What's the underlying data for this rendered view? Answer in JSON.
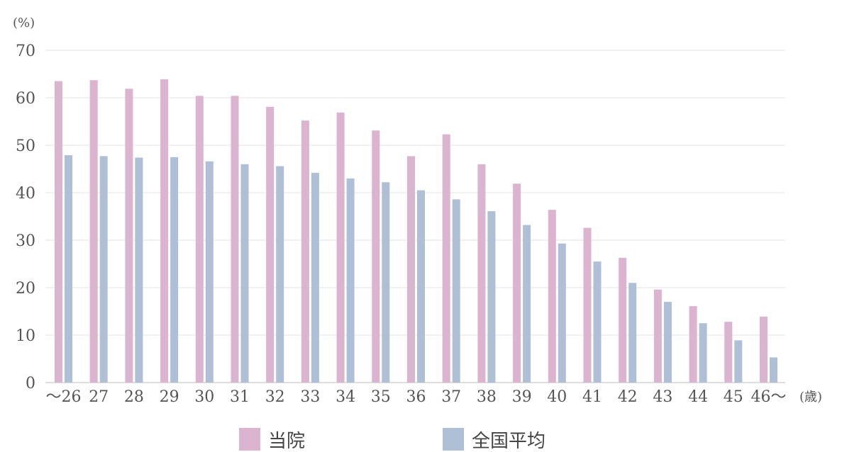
{
  "chart_data": {
    "type": "bar",
    "y_unit": "(%)",
    "x_unit": "(歳)",
    "categories": [
      "〜26",
      "27",
      "28",
      "29",
      "30",
      "31",
      "32",
      "33",
      "34",
      "35",
      "36",
      "37",
      "38",
      "39",
      "40",
      "41",
      "42",
      "43",
      "44",
      "45",
      "46〜"
    ],
    "series": [
      {
        "name": "当院",
        "color": "#dbb5cf",
        "values": [
          63.5,
          63.7,
          61.9,
          63.9,
          60.4,
          60.4,
          58.1,
          55.2,
          56.9,
          53.1,
          47.7,
          52.3,
          46.0,
          41.9,
          36.4,
          32.6,
          26.3,
          19.6,
          16.1,
          12.8,
          13.9
        ]
      },
      {
        "name": "全国平均",
        "color": "#aebfd6",
        "values": [
          47.9,
          47.7,
          47.4,
          47.5,
          46.6,
          46.0,
          45.6,
          44.2,
          43.0,
          42.2,
          40.5,
          38.6,
          36.1,
          33.2,
          29.3,
          25.5,
          21.0,
          17.0,
          12.5,
          8.9,
          5.3
        ]
      }
    ],
    "ylim": [
      0,
      70
    ],
    "yticks": [
      0,
      10,
      20,
      30,
      40,
      50,
      60,
      70
    ],
    "grid": true,
    "legend_position": "bottom"
  }
}
